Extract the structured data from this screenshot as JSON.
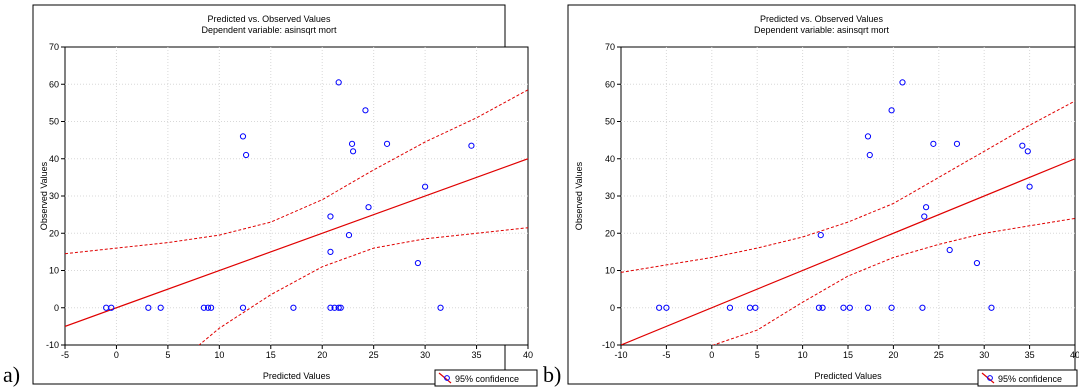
{
  "panel_labels": [
    "a)",
    "b)"
  ],
  "chart_data": [
    {
      "type": "scatter",
      "title": "Predicted vs. Observed Values",
      "subtitle": "Dependent variable: asinsqrt mort",
      "xlabel": "Predicted Values",
      "ylabel": "Observed Values",
      "xlim": [
        -5,
        40
      ],
      "ylim": [
        -10,
        70
      ],
      "xticks": [
        -5,
        0,
        5,
        10,
        15,
        20,
        25,
        30,
        35,
        40
      ],
      "yticks": [
        -10,
        0,
        10,
        20,
        30,
        40,
        50,
        60,
        70
      ],
      "grid": true,
      "legend": {
        "label": "95% confidence",
        "position": "bottom-right"
      },
      "points": [
        [
          -1.0,
          0
        ],
        [
          -0.5,
          0
        ],
        [
          3.1,
          0
        ],
        [
          4.3,
          0
        ],
        [
          8.5,
          0
        ],
        [
          8.9,
          0
        ],
        [
          9.2,
          0
        ],
        [
          12.3,
          0
        ],
        [
          17.2,
          0
        ],
        [
          20.8,
          0
        ],
        [
          21.2,
          0
        ],
        [
          21.6,
          0
        ],
        [
          21.8,
          0
        ],
        [
          31.5,
          0
        ],
        [
          12.3,
          46
        ],
        [
          12.6,
          41
        ],
        [
          20.8,
          15
        ],
        [
          20.8,
          24.5
        ],
        [
          21.6,
          60.5
        ],
        [
          22.6,
          19.5
        ],
        [
          22.9,
          44
        ],
        [
          23.0,
          42
        ],
        [
          24.2,
          53
        ],
        [
          24.5,
          27
        ],
        [
          26.3,
          44
        ],
        [
          29.3,
          12
        ],
        [
          30.0,
          32.5
        ],
        [
          34.5,
          43.5
        ]
      ],
      "fit_line": [
        [
          -5,
          -5
        ],
        [
          40,
          40
        ]
      ],
      "upper_band": [
        [
          -5,
          14.5
        ],
        [
          0,
          16
        ],
        [
          5,
          17.5
        ],
        [
          10,
          19.5
        ],
        [
          15,
          23
        ],
        [
          20,
          29
        ],
        [
          25,
          37
        ],
        [
          30,
          44.5
        ],
        [
          35,
          51
        ],
        [
          40,
          58.5
        ]
      ],
      "lower_band": [
        [
          5,
          -17
        ],
        [
          10,
          -5.5
        ],
        [
          15,
          3.5
        ],
        [
          20,
          11
        ],
        [
          25,
          16
        ],
        [
          30,
          18.5
        ],
        [
          35,
          20
        ],
        [
          40,
          21.5
        ]
      ]
    },
    {
      "type": "scatter",
      "title": "Predicted vs. Observed Values",
      "subtitle": "Dependent variable: asinsqrt mort",
      "xlabel": "Predicted Values",
      "ylabel": "Observed Values",
      "xlim": [
        -10,
        40
      ],
      "ylim": [
        -10,
        70
      ],
      "xticks": [
        -10,
        -5,
        0,
        5,
        10,
        15,
        20,
        25,
        30,
        35,
        40
      ],
      "yticks": [
        -10,
        0,
        10,
        20,
        30,
        40,
        50,
        60,
        70
      ],
      "grid": true,
      "legend": {
        "label": "95% confidence",
        "position": "bottom-right"
      },
      "points": [
        [
          -5.8,
          0
        ],
        [
          -5.0,
          0
        ],
        [
          2.0,
          0
        ],
        [
          4.2,
          0
        ],
        [
          4.8,
          0
        ],
        [
          11.8,
          0
        ],
        [
          12.2,
          0
        ],
        [
          14.5,
          0
        ],
        [
          15.2,
          0
        ],
        [
          17.2,
          0
        ],
        [
          19.8,
          0
        ],
        [
          23.2,
          0
        ],
        [
          30.8,
          0
        ],
        [
          12.0,
          19.5
        ],
        [
          17.2,
          46
        ],
        [
          17.4,
          41
        ],
        [
          19.8,
          53
        ],
        [
          21.0,
          60.5
        ],
        [
          23.4,
          24.5
        ],
        [
          23.6,
          27
        ],
        [
          24.4,
          44
        ],
        [
          26.2,
          15.5
        ],
        [
          27.0,
          44
        ],
        [
          29.2,
          12
        ],
        [
          34.2,
          43.5
        ],
        [
          34.8,
          42
        ],
        [
          35.0,
          32.5
        ]
      ],
      "fit_line": [
        [
          -10,
          -10
        ],
        [
          40,
          40
        ]
      ],
      "upper_band": [
        [
          -10,
          9.5
        ],
        [
          -5,
          11.5
        ],
        [
          0,
          13.5
        ],
        [
          5,
          16
        ],
        [
          10,
          19
        ],
        [
          15,
          23
        ],
        [
          20,
          28
        ],
        [
          25,
          35
        ],
        [
          30,
          42
        ],
        [
          35,
          49
        ],
        [
          40,
          55.5
        ]
      ],
      "lower_band": [
        [
          -1,
          -11
        ],
        [
          5,
          -6
        ],
        [
          10,
          1.5
        ],
        [
          15,
          8.5
        ],
        [
          20,
          13.5
        ],
        [
          25,
          17
        ],
        [
          30,
          20
        ],
        [
          35,
          22
        ],
        [
          40,
          24
        ]
      ]
    }
  ]
}
